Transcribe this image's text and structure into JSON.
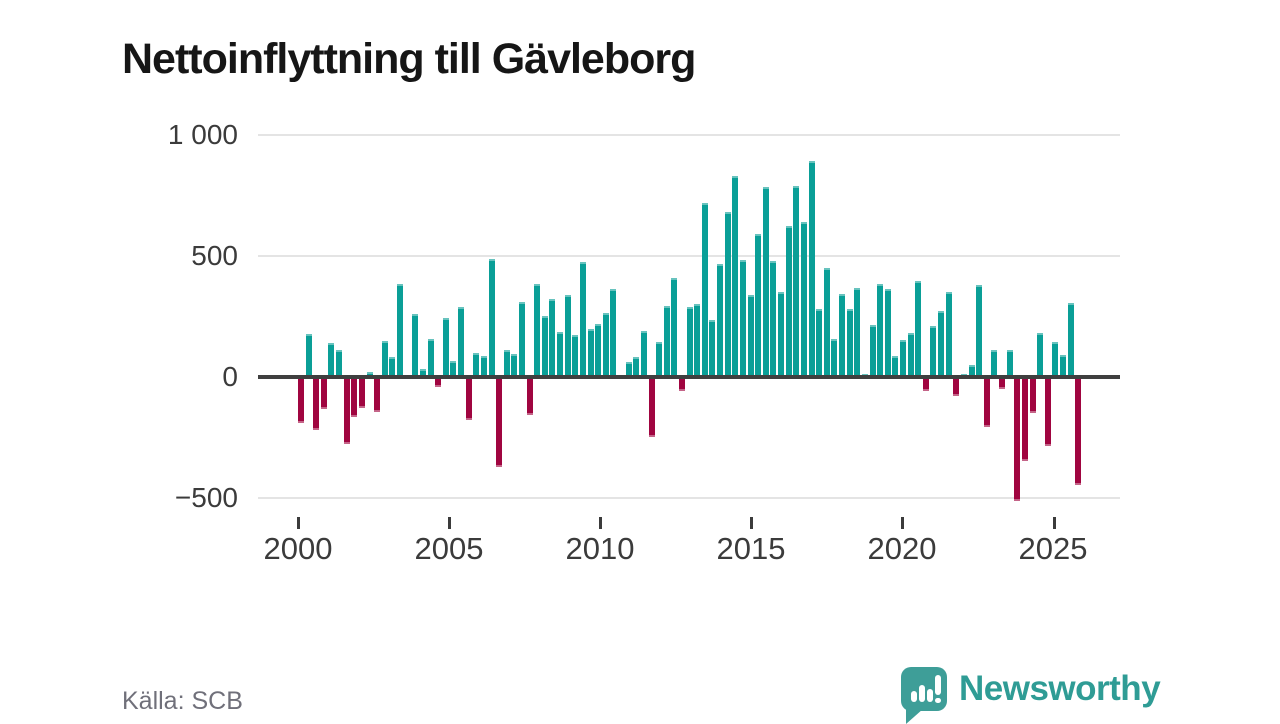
{
  "title": "Nettoinflyttning till Gävleborg",
  "footer": {
    "source": "Källa: SCB",
    "brand": "Newsworthy"
  },
  "colors": {
    "positive": "#0a9f97",
    "negative": "#a00540",
    "brand_text": "#2f9c95",
    "brand_icon": "#3e9e98",
    "axis_text": "#3b3b3b",
    "grid": "#e4e4e4",
    "zero_line": "#3f3f3f",
    "title_text": "#161616",
    "source_text": "#70707a"
  },
  "chart_data": {
    "type": "bar",
    "title": "Nettoinflyttning till Gävleborg",
    "x_axis": {
      "tick_labels": [
        "2000",
        "2005",
        "2010",
        "2015",
        "2020",
        "2025"
      ],
      "start": "2000K1",
      "end": "2025K3",
      "frequency": "quarterly"
    },
    "y_axis": {
      "tick_labels": [
        "1 000",
        "500",
        "0",
        "−500"
      ],
      "tick_values": [
        1000,
        500,
        0,
        -500
      ],
      "ylim": [
        -560,
        1000
      ],
      "gridlines": true
    },
    "values": [
      -180,
      176,
      -211,
      -126,
      140,
      111,
      -268,
      -158,
      -120,
      20,
      -135,
      149,
      81,
      386,
      0,
      259,
      32,
      155,
      -35,
      245,
      65,
      291,
      -171,
      100,
      87,
      486,
      -364,
      111,
      95,
      310,
      -150,
      383,
      253,
      321,
      188,
      339,
      173,
      476,
      200,
      220,
      264,
      365,
      0,
      62,
      83,
      191,
      -240,
      145,
      295,
      408,
      -50,
      290,
      301,
      717,
      234,
      466,
      682,
      832,
      484,
      339,
      589,
      784,
      481,
      351,
      623,
      789,
      641,
      893,
      280,
      451,
      156,
      341,
      279,
      366,
      11,
      213,
      383,
      362,
      88,
      152,
      182,
      397,
      -51,
      209,
      271,
      350,
      -70,
      12,
      50,
      379,
      -198,
      111,
      -43,
      112,
      -503,
      -340,
      -142,
      182,
      -275,
      145,
      89,
      304,
      -438
    ]
  }
}
